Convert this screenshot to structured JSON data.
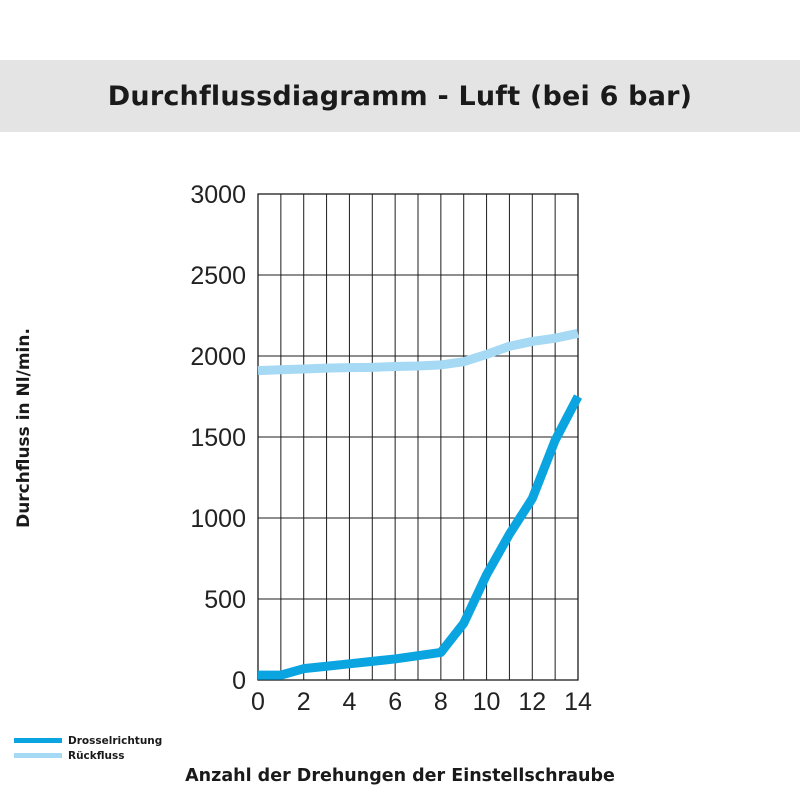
{
  "chart_data": {
    "type": "line",
    "title": "Durchflussdiagramm - Luft (bei 6 bar)",
    "xlabel": "Anzahl der Drehungen der Einstellschraube",
    "ylabel": "Durchfluss in Nl/min.",
    "xlim": [
      0,
      14
    ],
    "ylim": [
      0,
      3000
    ],
    "x_ticks": [
      0,
      2,
      4,
      6,
      8,
      10,
      12,
      14
    ],
    "y_ticks": [
      0,
      500,
      1000,
      1500,
      2000,
      2500,
      3000
    ],
    "x_grid_step": 1,
    "grid": true,
    "legend_position": "bottom-left",
    "series": [
      {
        "name": "Drosselrichtung",
        "color": "#0aa5e0",
        "x": [
          0,
          1,
          2,
          3,
          4,
          5,
          6,
          7,
          8,
          9,
          10,
          11,
          12,
          13,
          14
        ],
        "y": [
          30,
          30,
          70,
          85,
          100,
          115,
          130,
          150,
          170,
          350,
          650,
          900,
          1120,
          1480,
          1750
        ]
      },
      {
        "name": "Rückfluss",
        "color": "#a6d9f4",
        "x": [
          0,
          1,
          2,
          3,
          4,
          5,
          6,
          7,
          8,
          9,
          10,
          11,
          12,
          13,
          14
        ],
        "y": [
          1910,
          1915,
          1920,
          1925,
          1928,
          1930,
          1935,
          1938,
          1945,
          1965,
          2010,
          2060,
          2090,
          2110,
          2140
        ]
      }
    ]
  }
}
